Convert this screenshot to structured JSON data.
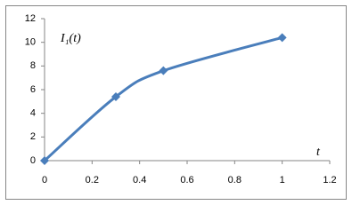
{
  "chart_data": {
    "type": "scatter",
    "smooth": true,
    "annotations": [
      "I₁(t)",
      "t"
    ],
    "series": [
      {
        "color": "#4a7ebb",
        "x": [
          0,
          0.3,
          0.5,
          1
        ],
        "values": [
          0,
          5.4,
          7.6,
          10.4
        ]
      }
    ],
    "xlim": [
      0,
      1.2
    ],
    "xticks": [
      0,
      0.2,
      0.4,
      0.6,
      0.8,
      1,
      1.2
    ],
    "ylim": [
      0,
      12
    ],
    "yticks": [
      0,
      2,
      4,
      6,
      8,
      10,
      12
    ]
  }
}
